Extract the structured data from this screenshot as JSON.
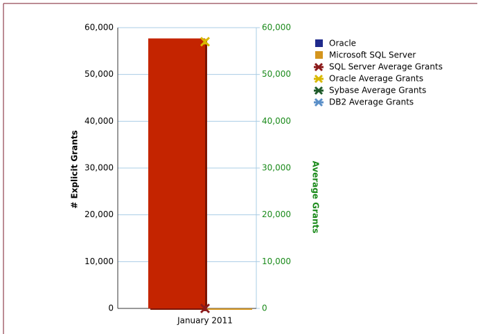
{
  "chart_data": {
    "type": "bar",
    "categories": [
      "January 2011"
    ],
    "ylabel": "# Explicit Grants",
    "y2label": "Average Grants",
    "ylim": [
      0,
      60000
    ],
    "yticks": [
      0,
      {
        "value": 10000,
        "label": "10,000"
      },
      {
        "value": 20000,
        "label": "20,000"
      },
      {
        "value": 30000,
        "label": "30,000"
      },
      {
        "value": 40000,
        "label": "40,000"
      },
      {
        "value": 50000,
        "label": "50,000"
      },
      {
        "value": 60000,
        "label": "60,000"
      }
    ],
    "y2lim": [
      0,
      60000
    ],
    "y2ticks": [
      0,
      {
        "value": 10000,
        "label": "10,000"
      },
      {
        "value": 20000,
        "label": "20,000"
      },
      {
        "value": 30000,
        "label": "30,000"
      },
      {
        "value": 40000,
        "label": "40,000"
      },
      {
        "value": 50000,
        "label": "50,000"
      },
      {
        "value": 60000,
        "label": "60,000"
      }
    ],
    "grid": true,
    "legend": "right",
    "series": [
      {
        "name": "Oracle",
        "kind": "bar",
        "color": "#1f2a8c",
        "bar_color": "#c42400",
        "values": [
          57700
        ]
      },
      {
        "name": "Microsoft SQL Server",
        "kind": "bar",
        "color": "#d4951e",
        "values": [
          0
        ]
      },
      {
        "name": "SQL Server Average Grants",
        "kind": "star",
        "axis": "y2",
        "color": "#8b1a1a",
        "values": [
          0
        ]
      },
      {
        "name": "Oracle Average Grants",
        "kind": "star",
        "axis": "y2",
        "color": "#d8b800",
        "values": [
          57000
        ]
      },
      {
        "name": "Sybase Average Grants",
        "kind": "star",
        "axis": "y2",
        "color": "#1f5a2a",
        "values": [
          null
        ]
      },
      {
        "name": "DB2 Average Grants",
        "kind": "star",
        "axis": "y2",
        "color": "#5a8fc8",
        "values": [
          null
        ]
      }
    ]
  }
}
